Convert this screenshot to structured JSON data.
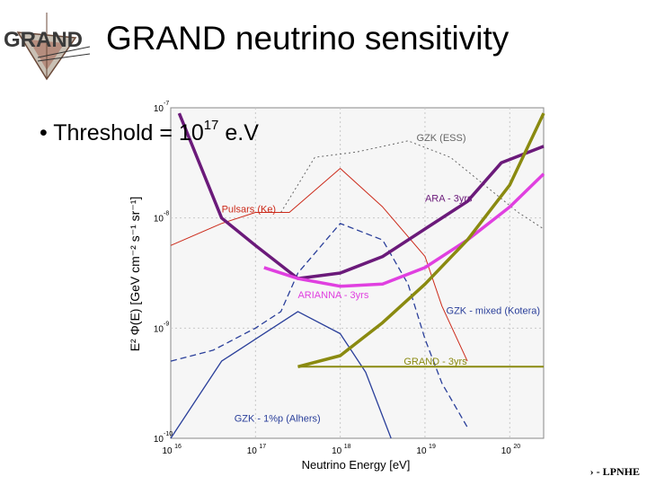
{
  "slide": {
    "logo_text": "GRAND",
    "title": "GRAND neutrino sensitivity",
    "bullet_prefix": "Threshold = 10",
    "bullet_exponent": "17",
    "bullet_suffix": " e.V",
    "footer": "› - LPNHE"
  },
  "colors": {
    "ara": "#6b1a7a",
    "arianna": "#e040e0",
    "grand": "#8a8a10",
    "pulsars": "#cc2a1a",
    "gzk": "#2a3f9a",
    "gzk_ess": "#666666"
  },
  "chart_data": {
    "type": "line",
    "log_x": true,
    "log_y": true,
    "xlim": [
      16,
      20.4
    ],
    "ylim": [
      -10,
      -7
    ],
    "xlabel": "Neutrino Energy  [eV]",
    "ylabel": "E² Φ(E) [GeV cm⁻² s⁻¹ sr⁻¹]",
    "x_ticks": [
      {
        "base": "10",
        "exp": "16",
        "value": 16
      },
      {
        "base": "10",
        "exp": "17",
        "value": 17
      },
      {
        "base": "10",
        "exp": "18",
        "value": 18
      },
      {
        "base": "10",
        "exp": "19",
        "value": 19
      },
      {
        "base": "10",
        "exp": "20",
        "value": 20
      }
    ],
    "y_ticks": [
      {
        "base": "10",
        "exp": "-7",
        "value": -7
      },
      {
        "base": "10",
        "exp": "-8",
        "value": -8
      },
      {
        "base": "10",
        "exp": "-9",
        "value": -9
      },
      {
        "base": "10",
        "exp": "-10",
        "value": -10
      }
    ],
    "series": [
      {
        "name": "GZK (ESS)",
        "color_key": "gzk_ess",
        "style": "dotted",
        "width": 1,
        "x": [
          17.3,
          17.7,
          18.2,
          18.8,
          19.3,
          19.7,
          20.1,
          20.4
        ],
        "y": [
          -7.95,
          -7.45,
          -7.4,
          -7.3,
          -7.45,
          -7.7,
          -7.95,
          -8.1
        ]
      },
      {
        "name": "Pulsars (Ke)",
        "color_key": "pulsars",
        "style": "solid",
        "width": 1,
        "x": [
          16.0,
          16.6,
          17.0,
          17.4,
          18.0,
          18.5,
          19.0,
          19.2,
          19.5
        ],
        "y": [
          -8.25,
          -8.05,
          -7.95,
          -7.95,
          -7.55,
          -7.9,
          -8.35,
          -8.8,
          -9.3
        ]
      },
      {
        "name": "GZK - mixed (Kotera)",
        "color_key": "gzk",
        "style": "dashed",
        "width": 1.3,
        "x": [
          16.0,
          16.5,
          17.0,
          17.3,
          17.5,
          18.0,
          18.5,
          18.8,
          19.0,
          19.2,
          19.5
        ],
        "y": [
          -9.3,
          -9.2,
          -9.0,
          -8.85,
          -8.5,
          -8.05,
          -8.2,
          -8.6,
          -9.1,
          -9.5,
          -9.9
        ]
      },
      {
        "name": "GZK - 1%p (Alhers)",
        "color_key": "gzk",
        "style": "solid",
        "width": 1.3,
        "x": [
          16.0,
          16.6,
          17.0,
          17.5,
          18.0,
          18.3,
          18.6
        ],
        "y": [
          -10.0,
          -9.3,
          -9.1,
          -8.85,
          -9.05,
          -9.4,
          -10.0
        ]
      },
      {
        "name": "ARA - 3yrs",
        "color_key": "ara",
        "style": "solid",
        "width": 3.5,
        "x": [
          16.1,
          16.6,
          17.0,
          17.5,
          18.0,
          18.5,
          19.0,
          19.5,
          19.9,
          20.4
        ],
        "y": [
          -7.05,
          -8.0,
          -8.25,
          -8.55,
          -8.5,
          -8.35,
          -8.1,
          -7.85,
          -7.5,
          -7.35
        ]
      },
      {
        "name": "ARIANNA - 3yrs",
        "color_key": "arianna",
        "style": "solid",
        "width": 3.5,
        "x": [
          17.1,
          17.5,
          18.0,
          18.5,
          19.0,
          19.5,
          20.0,
          20.4
        ],
        "y": [
          -8.45,
          -8.55,
          -8.62,
          -8.6,
          -8.45,
          -8.2,
          -7.9,
          -7.6
        ]
      },
      {
        "name": "GRAND - 3yrs",
        "color_key": "grand",
        "style": "solid",
        "width": 3.5,
        "x": [
          17.5,
          18.0,
          18.5,
          19.0,
          19.5,
          20.0,
          20.4
        ],
        "y": [
          -9.35,
          -9.25,
          -8.95,
          -8.6,
          -8.2,
          -7.7,
          -7.05
        ]
      },
      {
        "name": "GRAND limit",
        "color_key": "grand",
        "style": "solid",
        "width": 2,
        "x": [
          17.5,
          20.4
        ],
        "y": [
          -9.35,
          -9.35
        ]
      }
    ],
    "labels": [
      {
        "text": "GZK (ESS)",
        "color_key": "gzk_ess",
        "x": 18.9,
        "y": -7.3
      },
      {
        "text": "ARA - 3yrs",
        "color_key": "ara",
        "x": 19.0,
        "y": -7.85
      },
      {
        "text": "Pulsars (Ke)",
        "color_key": "pulsars",
        "x": 16.6,
        "y": -7.95
      },
      {
        "text": "ARIANNA - 3yrs",
        "color_key": "arianna",
        "x": 17.5,
        "y": -8.73
      },
      {
        "text": "GZK - mixed (Kotera)",
        "color_key": "gzk",
        "x": 19.25,
        "y": -8.87
      },
      {
        "text": "GRAND - 3yrs",
        "color_key": "grand",
        "x": 18.75,
        "y": -9.33
      },
      {
        "text": "GZK - 1%p (Alhers)",
        "color_key": "gzk",
        "x": 16.75,
        "y": -9.85
      }
    ]
  }
}
